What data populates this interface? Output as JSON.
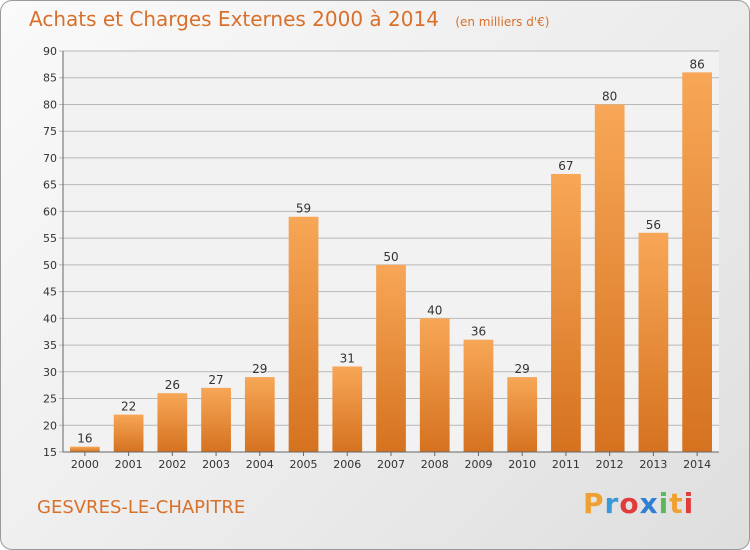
{
  "title": "Achats et Charges Externes 2000 à 2014",
  "unit": "(en milliers d'€)",
  "commune": "GESVRES-LE-CHAPITRE",
  "logo_letters": [
    "P",
    "r",
    "o",
    "x",
    "i",
    "t",
    "i"
  ],
  "logo_colors": [
    "#f0a030",
    "#3a9ad9",
    "#e23b3b",
    "#2f7fd4",
    "#5cb85c",
    "#f0a030",
    "#e23b3b"
  ],
  "colors": {
    "accent": "#d9702a",
    "bar_top": "#f7a757",
    "bar_bottom": "#d5721f",
    "grid": "#b8b8b8"
  },
  "chart_data": {
    "type": "bar",
    "title": "Achats et Charges Externes 2000 à 2014",
    "categories": [
      "2000",
      "2001",
      "2002",
      "2003",
      "2004",
      "2005",
      "2006",
      "2007",
      "2008",
      "2009",
      "2010",
      "2011",
      "2012",
      "2013",
      "2014"
    ],
    "values": [
      16,
      22,
      26,
      27,
      29,
      59,
      31,
      50,
      40,
      36,
      29,
      67,
      80,
      56,
      86
    ],
    "ylim": [
      15,
      90
    ],
    "yticks": [
      15,
      20,
      25,
      30,
      35,
      40,
      45,
      50,
      55,
      60,
      65,
      70,
      75,
      80,
      85,
      90
    ],
    "grid": true,
    "xlabel": "",
    "ylabel": ""
  }
}
